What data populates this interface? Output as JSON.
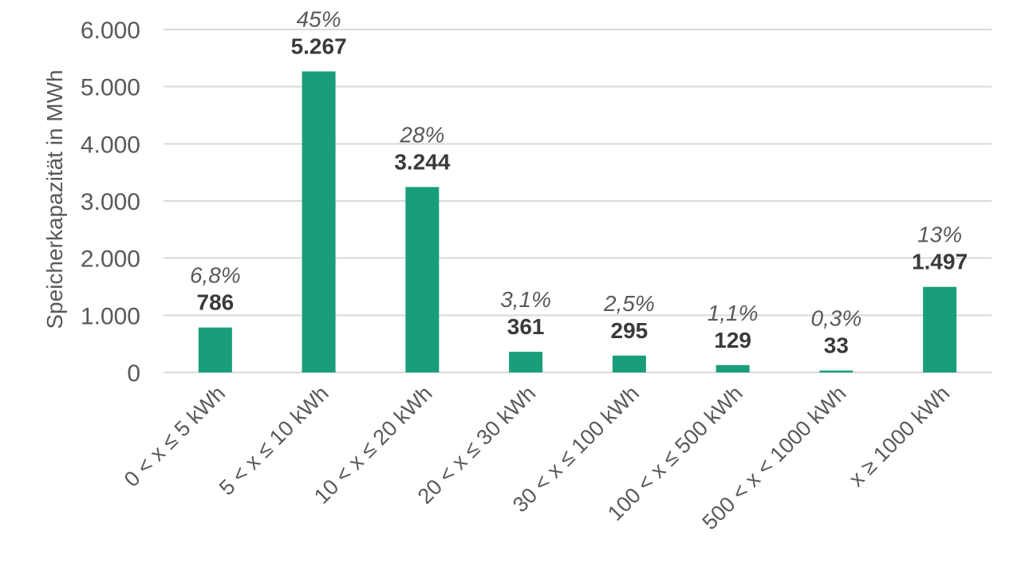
{
  "chart_data": {
    "type": "bar",
    "title": "",
    "xlabel": "",
    "ylabel": "Speicherkapazität in MWh",
    "ylim": [
      0,
      6000
    ],
    "yticks": [
      0,
      1000,
      2000,
      3000,
      4000,
      5000,
      6000
    ],
    "ytick_labels": [
      "0",
      "1.000",
      "2.000",
      "3.000",
      "4.000",
      "5.000",
      "6.000"
    ],
    "grid": true,
    "legend": "none",
    "bar_color": "#1a9e7a",
    "categories": [
      "0 < x ≤ 5 kWh",
      "5 < x ≤ 10 kWh",
      "10 < x ≤ 20 kWh",
      "20 < x ≤ 30 kWh",
      "30 < x ≤ 100 kWh",
      "100 < x ≤ 500 kWh",
      "500 < x < 1000 kWh",
      "x ≥ 1000 kWh"
    ],
    "values": [
      786,
      5267,
      3244,
      361,
      295,
      129,
      33,
      1497
    ],
    "value_labels": [
      "786",
      "5.267",
      "3.244",
      "361",
      "295",
      "129",
      "33",
      "1.497"
    ],
    "percent_labels": [
      "6,8%",
      "45%",
      "28%",
      "3,1%",
      "2,5%",
      "1,1%",
      "0,3%",
      "13%"
    ]
  }
}
